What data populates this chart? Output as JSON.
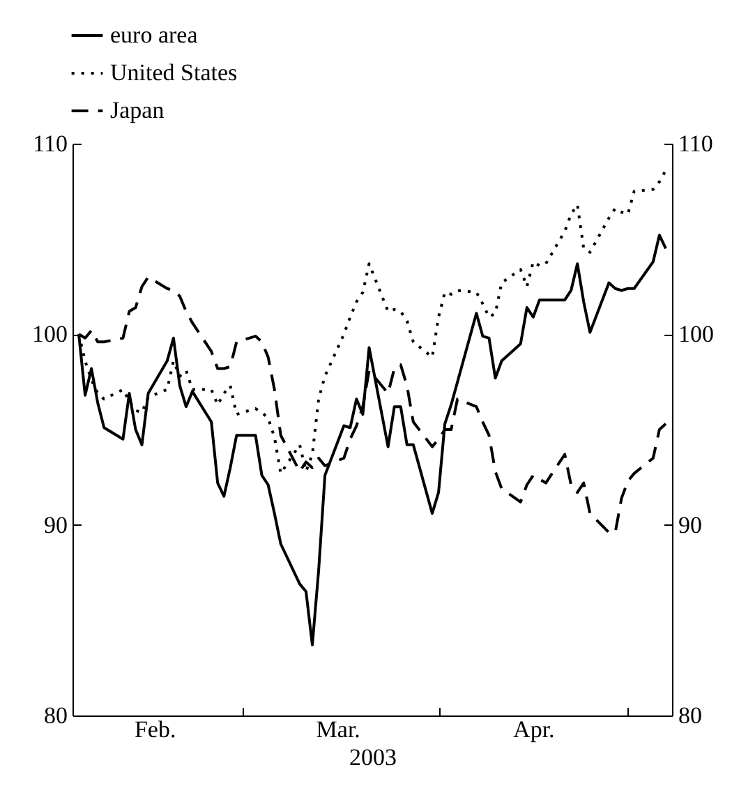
{
  "chart_data": {
    "type": "line",
    "xlabel": "2003",
    "x": [
      "2003-02-03",
      "2003-02-04",
      "2003-02-05",
      "2003-02-06",
      "2003-02-07",
      "2003-02-10",
      "2003-02-11",
      "2003-02-12",
      "2003-02-13",
      "2003-02-14",
      "2003-02-17",
      "2003-02-18",
      "2003-02-19",
      "2003-02-20",
      "2003-02-21",
      "2003-02-24",
      "2003-02-25",
      "2003-02-26",
      "2003-02-27",
      "2003-02-28",
      "2003-03-03",
      "2003-03-04",
      "2003-03-05",
      "2003-03-06",
      "2003-03-07",
      "2003-03-10",
      "2003-03-11",
      "2003-03-12",
      "2003-03-13",
      "2003-03-14",
      "2003-03-17",
      "2003-03-18",
      "2003-03-19",
      "2003-03-20",
      "2003-03-21",
      "2003-03-24",
      "2003-03-25",
      "2003-03-26",
      "2003-03-27",
      "2003-03-28",
      "2003-03-31",
      "2003-04-01",
      "2003-04-02",
      "2003-04-03",
      "2003-04-04",
      "2003-04-07",
      "2003-04-08",
      "2003-04-09",
      "2003-04-10",
      "2003-04-11",
      "2003-04-14",
      "2003-04-15",
      "2003-04-16",
      "2003-04-17",
      "2003-04-18",
      "2003-04-21",
      "2003-04-22",
      "2003-04-23",
      "2003-04-24",
      "2003-04-25",
      "2003-04-28",
      "2003-04-29",
      "2003-04-30",
      "2003-05-01",
      "2003-05-02",
      "2003-05-05",
      "2003-05-06",
      "2003-05-07"
    ],
    "series": [
      {
        "name": "euro area",
        "color": "#000000",
        "line_style": "solid",
        "values": [
          100,
          96.8,
          98.2,
          96.4,
          95.1,
          94.5,
          96.9,
          95.0,
          94.2,
          96.9,
          98.6,
          99.8,
          97.3,
          96.2,
          97.0,
          95.4,
          92.2,
          91.5,
          93.0,
          94.7,
          94.7,
          92.6,
          92.1,
          90.6,
          89.0,
          86.9,
          86.5,
          83.7,
          87.6,
          92.6,
          95.2,
          95.1,
          96.6,
          95.8,
          99.3,
          94.1,
          96.2,
          96.2,
          94.2,
          94.2,
          90.6,
          91.7,
          95.3,
          96.3,
          97.5,
          101.1,
          99.9,
          99.8,
          97.7,
          98.6,
          99.5,
          101.4,
          100.9,
          101.8,
          101.8,
          101.8,
          102.3,
          103.7,
          101.7,
          100.1,
          102.7,
          102.4,
          102.3,
          102.4,
          102.4,
          103.8,
          105.2,
          104.5
        ]
      },
      {
        "name": "United States",
        "color": "#000000",
        "line_style": "dotted",
        "values": [
          100,
          98.6,
          97.6,
          96.9,
          96.6,
          97.1,
          96.5,
          96.0,
          95.9,
          96.7,
          97.1,
          98.6,
          97.8,
          98.1,
          97.1,
          97.1,
          96.3,
          96.9,
          97.3,
          95.8,
          96.1,
          95.9,
          95.6,
          94.6,
          92.7,
          94.2,
          92.8,
          93.7,
          96.6,
          97.8,
          100.0,
          100.9,
          101.7,
          102.2,
          103.7,
          101.2,
          101.3,
          101.2,
          100.7,
          99.6,
          98.8,
          100.9,
          102.2,
          102.1,
          102.3,
          102.2,
          101.6,
          100.9,
          101.1,
          102.7,
          103.4,
          102.5,
          103.8,
          103.6,
          103.7,
          105.4,
          106.3,
          106.8,
          104.5,
          104.3,
          106.1,
          106.6,
          106.4,
          106.3,
          107.5,
          107.6,
          108.0,
          108.6
        ]
      },
      {
        "name": "Japan",
        "color": "#000000",
        "line_style": "dashed",
        "values": [
          100,
          99.8,
          100.2,
          99.6,
          99.6,
          99.8,
          101.2,
          101.4,
          102.5,
          103.0,
          102.4,
          102.3,
          102.0,
          101.2,
          100.6,
          99.1,
          98.2,
          98.2,
          98.3,
          99.6,
          99.9,
          99.6,
          98.8,
          97.1,
          94.7,
          92.8,
          93.3,
          93.0,
          93.5,
          93.1,
          93.5,
          94.5,
          95.2,
          96.2,
          98.1,
          96.9,
          98.2,
          98.4,
          97.3,
          95.4,
          94.1,
          94.5,
          95.0,
          95.0,
          96.6,
          96.2,
          95.4,
          94.7,
          92.8,
          91.9,
          91.2,
          92.1,
          92.6,
          92.4,
          92.2,
          93.7,
          92.1,
          91.7,
          92.2,
          90.6,
          89.6,
          89.6,
          91.4,
          92.3,
          92.7,
          93.5,
          95.0,
          95.3
        ]
      }
    ],
    "xlim": [
      "2003-02-02",
      "2003-05-08"
    ],
    "xticks": [
      {
        "value": "2003-02-15",
        "label": "Feb."
      },
      {
        "value": "2003-03-01",
        "label": null
      },
      {
        "value": "2003-03-16",
        "label": "Mar."
      },
      {
        "value": "2003-04-01",
        "label": null
      },
      {
        "value": "2003-04-16",
        "label": "Apr."
      },
      {
        "value": "2003-05-01",
        "label": null
      }
    ],
    "ylim": [
      80,
      110
    ],
    "yticks": [
      80,
      90,
      100,
      110
    ],
    "y2lim": [
      80,
      110
    ],
    "y2ticks": [
      80,
      90,
      100,
      110
    ],
    "grid": false,
    "legend": "top left",
    "marker": "none"
  }
}
